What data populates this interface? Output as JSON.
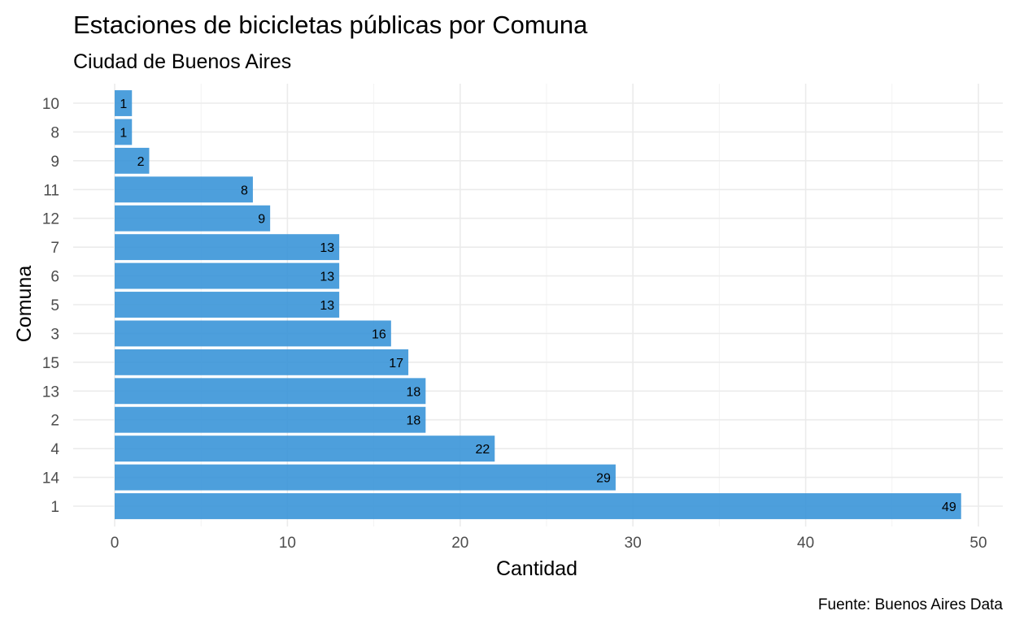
{
  "chart_data": {
    "type": "bar",
    "orientation": "horizontal",
    "title": "Estaciones de bicicletas públicas por Comuna",
    "subtitle": "Ciudad de Buenos Aires",
    "xlabel": "Cantidad",
    "ylabel": "Comuna",
    "caption": "Fuente: Buenos Aires Data",
    "categories": [
      "10",
      "8",
      "9",
      "11",
      "12",
      "7",
      "6",
      "5",
      "3",
      "15",
      "13",
      "2",
      "4",
      "14",
      "1"
    ],
    "values": [
      1,
      1,
      2,
      8,
      9,
      13,
      13,
      13,
      16,
      17,
      18,
      18,
      22,
      29,
      49
    ],
    "xlim": [
      0,
      50
    ],
    "xticks": [
      0,
      10,
      20,
      30,
      40,
      50
    ],
    "grid": true,
    "legend": "none",
    "bar_color": "#3a95d8"
  }
}
